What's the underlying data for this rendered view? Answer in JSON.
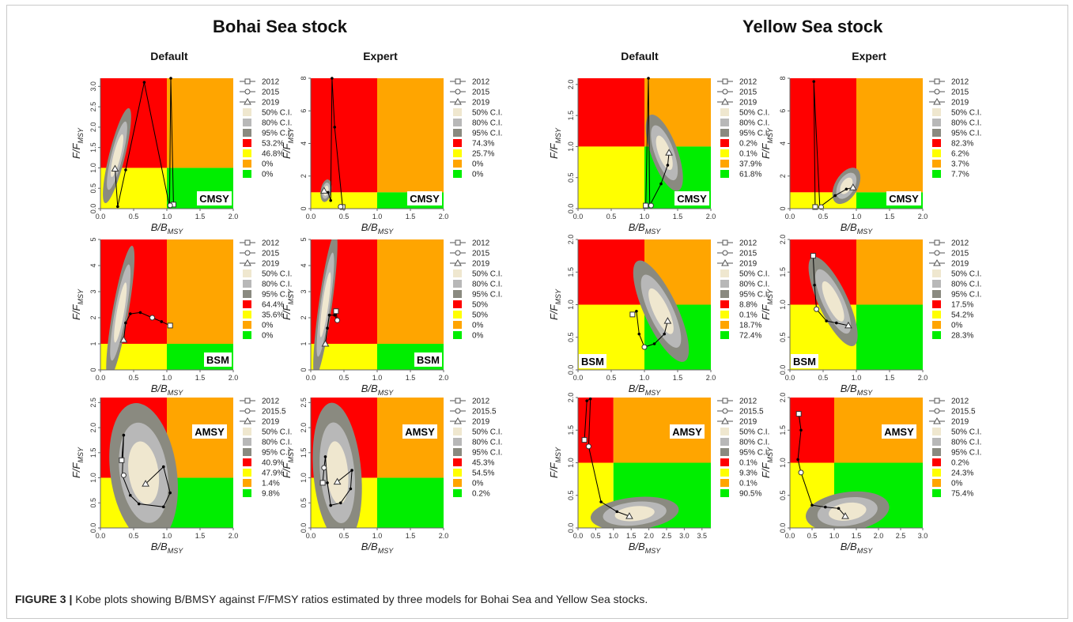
{
  "figure": {
    "stocks": [
      "Bohai Sea stock",
      "Yellow Sea stock"
    ],
    "columns": [
      "Default",
      "Expert",
      "Default",
      "Expert"
    ],
    "caption_label": "FIGURE 3 |",
    "caption_text": "Kobe plots showing B/BMSY against F/FMSY ratios estimated by three models for Bohai Sea and Yellow Sea stocks."
  },
  "colors": {
    "red": "#ff0000",
    "yellow": "#ffff00",
    "orange": "#ffa500",
    "green": "#00ee00",
    "ci50": "#efe7cf",
    "ci80": "#b8b8b8",
    "ci95": "#8a8a80"
  },
  "legend_common": [
    "50% C.I.",
    "80% C.I.",
    "95% C.I."
  ],
  "chart_data": [
    {
      "type": "scatter",
      "model": "CMSY",
      "stock": "Bohai Sea stock",
      "column": "Default",
      "xlabel": "B/BMSY",
      "ylabel": "F/FMSY",
      "xlim": [
        0,
        2
      ],
      "ylim": [
        0,
        3.2
      ],
      "xticks": [
        "0.0",
        "0.5",
        "1.0",
        "1.5",
        "2.0"
      ],
      "yticks": [
        "0.0",
        "0.5",
        "1.0",
        "1.5",
        "2.0",
        "2.5",
        "3.0"
      ],
      "years": [
        "2012",
        "2015",
        "2019"
      ],
      "percentages": [
        "53.2%",
        "46.8%",
        "0%",
        "0%"
      ],
      "trajectory": [
        [
          1.1,
          0.1
        ],
        [
          1.06,
          3.2
        ],
        [
          1.04,
          0.05
        ],
        [
          0.66,
          3.1
        ],
        [
          0.38,
          0.95
        ],
        [
          0.26,
          0.05
        ],
        [
          0.22,
          0.98
        ]
      ],
      "markers": {
        "2012": [
          1.1,
          0.1
        ],
        "2015": [
          1.05,
          0.08
        ],
        "2019": [
          0.22,
          0.98
        ]
      },
      "ci": {
        "cx": 0.25,
        "cy": 1.3,
        "rx": 0.12,
        "ry": 1.2,
        "rot": 14
      }
    },
    {
      "type": "scatter",
      "model": "CMSY",
      "stock": "Bohai Sea stock",
      "column": "Expert",
      "xlabel": "B/BMSY",
      "ylabel": "F/FMSY",
      "xlim": [
        0,
        2
      ],
      "ylim": [
        0,
        8
      ],
      "xticks": [
        "0.0",
        "0.5",
        "1.0",
        "1.5",
        "2.0"
      ],
      "yticks": [
        "0",
        "2",
        "4",
        "6",
        "8"
      ],
      "years": [
        "2012",
        "2015",
        "2019"
      ],
      "percentages": [
        "74.3%",
        "25.7%",
        "0%",
        "0%"
      ],
      "trajectory": [
        [
          0.48,
          0.1
        ],
        [
          0.36,
          5
        ],
        [
          0.32,
          8
        ],
        [
          0.3,
          0.5
        ],
        [
          0.26,
          1.0
        ],
        [
          0.2,
          1.1
        ]
      ],
      "markers": {
        "2012": [
          0.48,
          0.1
        ],
        "2015": [
          0.45,
          0.12
        ],
        "2019": [
          0.2,
          1.1
        ]
      },
      "ci": {
        "cx": 0.23,
        "cy": 1.1,
        "rx": 0.08,
        "ry": 0.7,
        "rot": 10
      }
    },
    {
      "type": "scatter",
      "model": "CMSY",
      "stock": "Yellow Sea stock",
      "column": "Default",
      "xlabel": "B/BMSY",
      "ylabel": "F/FMSY",
      "xlim": [
        0,
        2
      ],
      "ylim": [
        0,
        2.1
      ],
      "xticks": [
        "0.0",
        "0.5",
        "1.0",
        "1.5",
        "2.0"
      ],
      "yticks": [
        "0.0",
        "0.5",
        "1.0",
        "1.5",
        "2.0"
      ],
      "years": [
        "2012",
        "2015",
        "2019"
      ],
      "percentages": [
        "0.2%",
        "0.1%",
        "37.9%",
        "61.8%"
      ],
      "trajectory": [
        [
          1.02,
          0.05
        ],
        [
          1.06,
          2.1
        ],
        [
          1.08,
          0.05
        ],
        [
          1.25,
          0.4
        ],
        [
          1.35,
          0.7
        ],
        [
          1.37,
          0.9
        ]
      ],
      "markers": {
        "2012": [
          1.02,
          0.05
        ],
        "2015": [
          1.1,
          0.05
        ],
        "2019": [
          1.37,
          0.9
        ]
      },
      "ci": {
        "cx": 1.3,
        "cy": 0.9,
        "rx": 0.2,
        "ry": 0.65,
        "rot": -20
      }
    },
    {
      "type": "scatter",
      "model": "CMSY",
      "stock": "Yellow Sea stock",
      "column": "Expert",
      "xlabel": "B/BMSY",
      "ylabel": "F/FMSY",
      "xlim": [
        0,
        2
      ],
      "ylim": [
        0,
        8
      ],
      "xticks": [
        "0.0",
        "0.5",
        "1.0",
        "1.5",
        "2.0"
      ],
      "yticks": [
        "0",
        "2",
        "4",
        "6",
        "8"
      ],
      "years": [
        "2012",
        "2015",
        "2019"
      ],
      "percentages": [
        "82.3%",
        "6.2%",
        "3.7%",
        "7.7%"
      ],
      "trajectory": [
        [
          0.38,
          0.1
        ],
        [
          0.36,
          7.8
        ],
        [
          0.45,
          0.1
        ],
        [
          0.68,
          0.8
        ],
        [
          0.85,
          1.2
        ],
        [
          0.95,
          1.3
        ]
      ],
      "markers": {
        "2012": [
          0.38,
          0.1
        ],
        "2015": [
          0.47,
          0.1
        ],
        "2019": [
          0.95,
          1.3
        ]
      },
      "ci": {
        "cx": 0.85,
        "cy": 1.4,
        "rx": 0.3,
        "ry": 0.7,
        "rot": -60
      }
    },
    {
      "type": "scatter",
      "model": "BSM",
      "stock": "Bohai Sea stock",
      "column": "Default",
      "xlabel": "B/BMSY",
      "ylabel": "F/FMSY",
      "xlim": [
        0,
        2
      ],
      "ylim": [
        0,
        5
      ],
      "xticks": [
        "0.0",
        "0.5",
        "1.0",
        "1.5",
        "2.0"
      ],
      "yticks": [
        "0",
        "1",
        "2",
        "3",
        "4",
        "5"
      ],
      "years": [
        "2012",
        "2015",
        "2019"
      ],
      "percentages": [
        "64.4%",
        "35.6%",
        "0%",
        "0%"
      ],
      "trajectory": [
        [
          1.05,
          1.7
        ],
        [
          0.92,
          1.85
        ],
        [
          0.78,
          2.0
        ],
        [
          0.6,
          2.2
        ],
        [
          0.45,
          2.15
        ],
        [
          0.38,
          1.8
        ],
        [
          0.35,
          1.15
        ]
      ],
      "markers": {
        "2012": [
          1.05,
          1.7
        ],
        "2015": [
          0.78,
          2.0
        ],
        "2019": [
          0.35,
          1.15
        ]
      },
      "ci": {
        "cx": 0.3,
        "cy": 2.2,
        "rx": 0.12,
        "ry": 2.6,
        "rot": 10
      }
    },
    {
      "type": "scatter",
      "model": "BSM",
      "stock": "Bohai Sea stock",
      "column": "Expert",
      "xlabel": "B/BMSY",
      "ylabel": "F/FMSY",
      "xlim": [
        0,
        2
      ],
      "ylim": [
        0,
        5
      ],
      "xticks": [
        "0.0",
        "0.5",
        "1.0",
        "1.5",
        "2.0"
      ],
      "yticks": [
        "0",
        "1",
        "2",
        "3",
        "4",
        "5"
      ],
      "years": [
        "2012",
        "2015",
        "2019"
      ],
      "percentages": [
        "50%",
        "50%",
        "0%",
        "0%"
      ],
      "trajectory": [
        [
          0.38,
          2.25
        ],
        [
          0.4,
          1.9
        ],
        [
          0.36,
          2.1
        ],
        [
          0.28,
          2.1
        ],
        [
          0.25,
          1.6
        ],
        [
          0.22,
          1.0
        ]
      ],
      "markers": {
        "2012": [
          0.38,
          2.25
        ],
        "2015": [
          0.4,
          1.9
        ],
        "2019": [
          0.22,
          1.0
        ]
      },
      "ci": {
        "cx": 0.22,
        "cy": 2.5,
        "rx": 0.1,
        "ry": 2.8,
        "rot": 8
      }
    },
    {
      "type": "scatter",
      "model": "BSM",
      "stock": "Yellow Sea stock",
      "column": "Default",
      "xlabel": "B/BMSY",
      "ylabel": "F/FMSY",
      "xlim": [
        0,
        2
      ],
      "ylim": [
        0,
        2
      ],
      "xticks": [
        "0.0",
        "0.5",
        "1.0",
        "1.5",
        "2.0"
      ],
      "yticks": [
        "0.0",
        "0.5",
        "1.0",
        "1.5",
        "2.0"
      ],
      "years": [
        "2012",
        "2015",
        "2019"
      ],
      "percentages": [
        "8.8%",
        "0.1%",
        "18.7%",
        "72.4%"
      ],
      "trajectory": [
        [
          0.82,
          0.85
        ],
        [
          0.88,
          0.9
        ],
        [
          0.92,
          0.55
        ],
        [
          1.0,
          0.35
        ],
        [
          1.15,
          0.4
        ],
        [
          1.3,
          0.55
        ],
        [
          1.35,
          0.75
        ]
      ],
      "markers": {
        "2012": [
          0.82,
          0.85
        ],
        "2015": [
          1.0,
          0.35
        ],
        "2019": [
          1.35,
          0.75
        ]
      },
      "ci": {
        "cx": 1.25,
        "cy": 0.9,
        "rx": 0.25,
        "ry": 0.85,
        "rot": -25
      }
    },
    {
      "type": "scatter",
      "model": "BSM",
      "stock": "Yellow Sea stock",
      "column": "Expert",
      "xlabel": "B/BMSY",
      "ylabel": "F/FMSY",
      "xlim": [
        0,
        2
      ],
      "ylim": [
        0,
        2
      ],
      "xticks": [
        "0.0",
        "0.5",
        "1.0",
        "1.5",
        "2.0"
      ],
      "yticks": [
        "0.0",
        "0.5",
        "1.0",
        "1.5",
        "2.0"
      ],
      "years": [
        "2012",
        "2015",
        "2019"
      ],
      "percentages": [
        "17.5%",
        "54.2%",
        "0%",
        "28.3%"
      ],
      "trajectory": [
        [
          0.35,
          1.75
        ],
        [
          0.37,
          1.3
        ],
        [
          0.4,
          0.93
        ],
        [
          0.55,
          0.75
        ],
        [
          0.7,
          0.72
        ],
        [
          0.88,
          0.68
        ]
      ],
      "markers": {
        "2012": [
          0.35,
          1.75
        ],
        "2015": [
          0.4,
          0.93
        ],
        "2019": [
          0.88,
          0.68
        ]
      },
      "ci": {
        "cx": 0.65,
        "cy": 1.05,
        "rx": 0.22,
        "ry": 0.75,
        "rot": -25
      }
    },
    {
      "type": "scatter",
      "model": "AMSY",
      "stock": "Bohai Sea stock",
      "column": "Default",
      "xlabel": "B/BMSY",
      "ylabel": "F/FMSY",
      "xlim": [
        0,
        2
      ],
      "ylim": [
        0,
        2.6
      ],
      "xticks": [
        "0.0",
        "0.5",
        "1.0",
        "1.5",
        "2.0"
      ],
      "yticks": [
        "0.0",
        "0.5",
        "1.0",
        "1.5",
        "2.0",
        "2.5"
      ],
      "years": [
        "2012",
        "2015.5",
        "2019"
      ],
      "percentages": [
        "40.9%",
        "47.9%",
        "1.4%",
        "9.8%"
      ],
      "trajectory": [
        [
          0.32,
          1.35
        ],
        [
          0.35,
          1.85
        ],
        [
          0.33,
          1.05
        ],
        [
          0.45,
          0.65
        ],
        [
          0.58,
          0.48
        ],
        [
          0.95,
          0.42
        ],
        [
          1.05,
          0.7
        ],
        [
          0.95,
          1.22
        ],
        [
          0.68,
          0.88
        ]
      ],
      "markers": {
        "2012": [
          0.32,
          1.35
        ],
        "2015.5": [
          0.35,
          1.05
        ],
        "2019": [
          0.68,
          0.88
        ]
      },
      "ci": {
        "cx": 0.65,
        "cy": 1.1,
        "rx": 0.5,
        "ry": 1.4,
        "rot": -8
      }
    },
    {
      "type": "scatter",
      "model": "AMSY",
      "stock": "Bohai Sea stock",
      "column": "Expert",
      "xlabel": "B/BMSY",
      "ylabel": "F/FMSY",
      "xlim": [
        0,
        2
      ],
      "ylim": [
        0,
        2.6
      ],
      "xticks": [
        "0.0",
        "0.5",
        "1.0",
        "1.5",
        "2.0"
      ],
      "yticks": [
        "0.0",
        "0.5",
        "1.0",
        "1.5",
        "2.0",
        "2.5"
      ],
      "years": [
        "2012",
        "2015.5",
        "2019"
      ],
      "percentages": [
        "45.3%",
        "54.5%",
        "0%",
        "0.2%"
      ],
      "trajectory": [
        [
          0.18,
          0.9
        ],
        [
          0.2,
          1.2
        ],
        [
          0.22,
          1.42
        ],
        [
          0.25,
          0.9
        ],
        [
          0.3,
          0.45
        ],
        [
          0.45,
          0.5
        ],
        [
          0.6,
          0.78
        ],
        [
          0.62,
          1.15
        ],
        [
          0.4,
          0.92
        ]
      ],
      "markers": {
        "2012": [
          0.18,
          0.9
        ],
        "2015.5": [
          0.2,
          1.2
        ],
        "2019": [
          0.4,
          0.92
        ]
      },
      "ci": {
        "cx": 0.4,
        "cy": 1.1,
        "rx": 0.36,
        "ry": 1.4,
        "rot": -5
      }
    },
    {
      "type": "scatter",
      "model": "AMSY",
      "stock": "Yellow Sea stock",
      "column": "Default",
      "xlabel": "B/BMSY",
      "ylabel": "F/FMSY",
      "xlim": [
        0,
        3.75
      ],
      "ylim": [
        0,
        2
      ],
      "xticks": [
        "0.0",
        "0.5",
        "1.0",
        "1.5",
        "2.0",
        "2.5",
        "3.0",
        "3.5"
      ],
      "yticks": [
        "0.0",
        "0.5",
        "1.0",
        "1.5",
        "2.0"
      ],
      "years": [
        "2012",
        "2015.5",
        "2019"
      ],
      "percentages": [
        "0.1%",
        "9.3%",
        "0.1%",
        "90.5%"
      ],
      "trajectory": [
        [
          0.18,
          1.35
        ],
        [
          0.25,
          1.95
        ],
        [
          0.35,
          1.98
        ],
        [
          0.3,
          1.25
        ],
        [
          0.65,
          0.4
        ],
        [
          1.1,
          0.25
        ],
        [
          1.45,
          0.18
        ]
      ],
      "markers": {
        "2012": [
          0.18,
          1.35
        ],
        "2015.5": [
          0.3,
          1.25
        ],
        "2019": [
          1.45,
          0.18
        ]
      },
      "ci": {
        "cx": 1.6,
        "cy": 0.22,
        "rx": 1.25,
        "ry": 0.25,
        "rot": -6
      }
    },
    {
      "type": "scatter",
      "model": "AMSY",
      "stock": "Yellow Sea stock",
      "column": "Expert",
      "xlabel": "B/BMSY",
      "ylabel": "F/FMSY",
      "xlim": [
        0,
        3
      ],
      "ylim": [
        0,
        2
      ],
      "xticks": [
        "0.0",
        "0.5",
        "1.0",
        "1.5",
        "2.0",
        "2.5",
        "3.0"
      ],
      "yticks": [
        "0.0",
        "0.5",
        "1.0",
        "1.5",
        "2.0"
      ],
      "years": [
        "2012",
        "2015.5",
        "2019"
      ],
      "percentages": [
        "0.2%",
        "24.3%",
        "0%",
        "75.4%"
      ],
      "trajectory": [
        [
          0.2,
          1.75
        ],
        [
          0.25,
          1.5
        ],
        [
          0.18,
          1.05
        ],
        [
          0.25,
          0.85
        ],
        [
          0.5,
          0.35
        ],
        [
          0.8,
          0.32
        ],
        [
          1.1,
          0.3
        ],
        [
          1.25,
          0.18
        ]
      ],
      "markers": {
        "2012": [
          0.2,
          1.75
        ],
        "2015.5": [
          0.25,
          0.85
        ],
        "2019": [
          1.25,
          0.18
        ]
      },
      "ci": {
        "cx": 1.3,
        "cy": 0.25,
        "rx": 0.95,
        "ry": 0.3,
        "rot": -8
      }
    }
  ]
}
